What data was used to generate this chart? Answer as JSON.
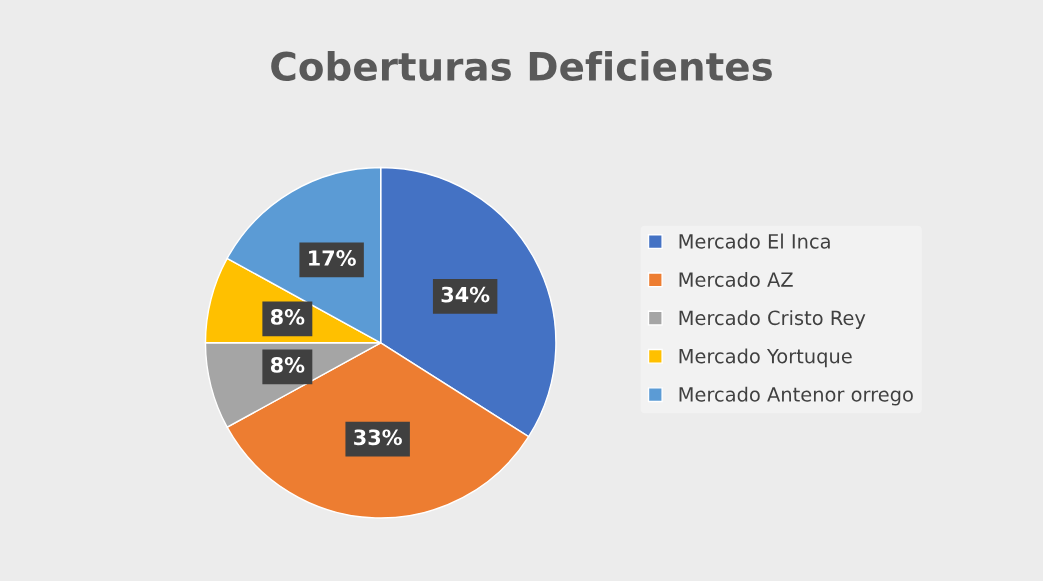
{
  "chart_data": {
    "type": "pie",
    "title": "Coberturas Deficientes",
    "categories": [
      "Mercado El Inca",
      "Mercado AZ",
      "Mercado Cristo Rey",
      "Mercado Yortuque",
      "Mercado Antenor orrego"
    ],
    "values": [
      34,
      33,
      8,
      8,
      17
    ],
    "colors": [
      "#4472c4",
      "#ed7d31",
      "#a5a5a5",
      "#ffc000",
      "#5b9bd5"
    ],
    "value_labels": [
      "34%",
      "33%",
      "8%",
      "8%",
      "17%"
    ],
    "legend": "right"
  }
}
